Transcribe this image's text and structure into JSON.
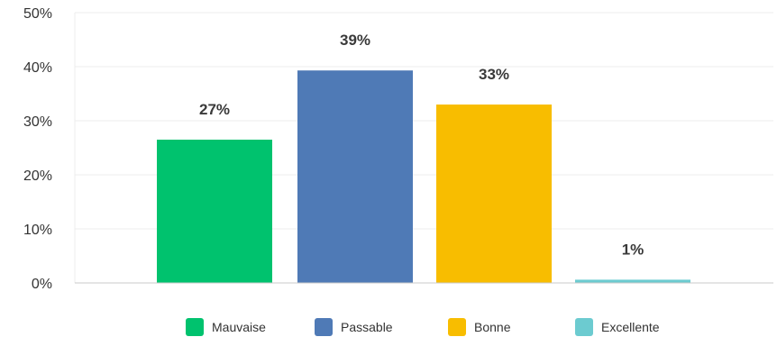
{
  "chart_data": {
    "type": "bar",
    "categories": [
      "Mauvaise",
      "Passable",
      "Bonne",
      "Excellente"
    ],
    "values": [
      27,
      39,
      33,
      1
    ],
    "value_labels": [
      "27%",
      "39%",
      "33%",
      "1%"
    ],
    "bar_heights_percent": [
      26.5,
      39.3,
      33.0,
      0.6
    ],
    "colors": [
      "#00c26e",
      "#4f7ab6",
      "#f8bd00",
      "#6ccbd0"
    ],
    "ylim": [
      0,
      50
    ],
    "yticks": [
      0,
      10,
      20,
      30,
      40,
      50
    ],
    "ytick_labels": [
      "0%",
      "10%",
      "20%",
      "30%",
      "40%",
      "50%"
    ],
    "grid": true,
    "legend_position": "bottom",
    "title": "",
    "xlabel": "",
    "ylabel": ""
  }
}
